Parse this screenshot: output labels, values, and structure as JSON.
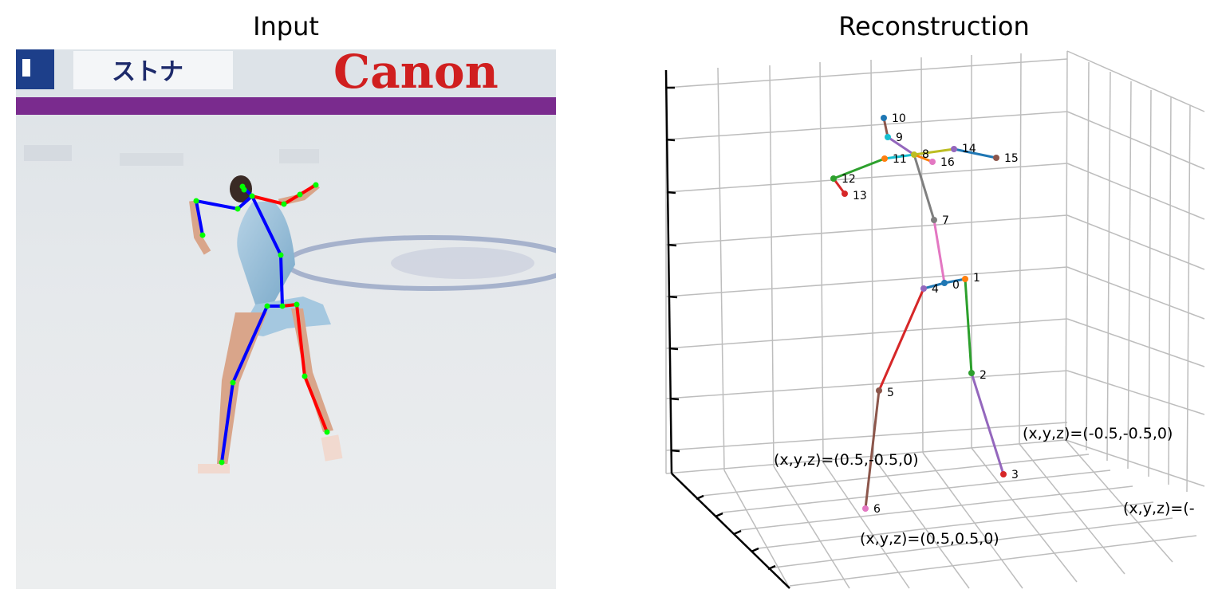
{
  "panels": {
    "input_title": "Input",
    "reconstruction_title": "Reconstruction"
  },
  "input_image": {
    "banner_left_text": "ストナ",
    "banner_brand_text": "Canon",
    "skeleton_colors": {
      "left": "#0000ff",
      "right": "#ff0000",
      "joint": "#00ff00"
    }
  },
  "reconstruction": {
    "joints": [
      {
        "id": "0",
        "color": "#1f77b4"
      },
      {
        "id": "1",
        "color": "#ff7f0e"
      },
      {
        "id": "2",
        "color": "#2ca02c"
      },
      {
        "id": "3",
        "color": "#d62728"
      },
      {
        "id": "4",
        "color": "#9467bd"
      },
      {
        "id": "5",
        "color": "#8c564b"
      },
      {
        "id": "6",
        "color": "#e377c2"
      },
      {
        "id": "7",
        "color": "#7f7f7f"
      },
      {
        "id": "8",
        "color": "#bcbd22"
      },
      {
        "id": "9",
        "color": "#17becf"
      },
      {
        "id": "10",
        "color": "#1f77b4"
      },
      {
        "id": "11",
        "color": "#ff7f0e"
      },
      {
        "id": "12",
        "color": "#2ca02c"
      },
      {
        "id": "13",
        "color": "#d62728"
      },
      {
        "id": "14",
        "color": "#9467bd"
      },
      {
        "id": "15",
        "color": "#8c564b"
      },
      {
        "id": "16",
        "color": "#e377c2"
      }
    ],
    "bones": [
      {
        "from": "0",
        "to": "1",
        "color": "#1f77b4"
      },
      {
        "from": "1",
        "to": "2",
        "color": "#2ca02c"
      },
      {
        "from": "2",
        "to": "3",
        "color": "#9467bd"
      },
      {
        "from": "0",
        "to": "4",
        "color": "#1f77b4"
      },
      {
        "from": "4",
        "to": "5",
        "color": "#d62728"
      },
      {
        "from": "5",
        "to": "6",
        "color": "#8c564b"
      },
      {
        "from": "0",
        "to": "7",
        "color": "#e377c2"
      },
      {
        "from": "7",
        "to": "8",
        "color": "#7f7f7f"
      },
      {
        "from": "8",
        "to": "9",
        "color": "#9467bd"
      },
      {
        "from": "9",
        "to": "10",
        "color": "#8c564b"
      },
      {
        "from": "8",
        "to": "11",
        "color": "#17becf"
      },
      {
        "from": "11",
        "to": "12",
        "color": "#2ca02c"
      },
      {
        "from": "12",
        "to": "13",
        "color": "#d62728"
      },
      {
        "from": "8",
        "to": "14",
        "color": "#bcbd22"
      },
      {
        "from": "14",
        "to": "15",
        "color": "#1f77b4"
      },
      {
        "from": "8",
        "to": "16",
        "color": "#ff7f0e"
      }
    ],
    "corner_labels": {
      "a": "(x,y,z)=(0.5,-0.5,0)",
      "b": "(x,y,z)=(-0.5,-0.5,0)",
      "c": "(x,y,z)=(0.5,0.5,0)",
      "d": "(x,y,z)=(-"
    }
  }
}
